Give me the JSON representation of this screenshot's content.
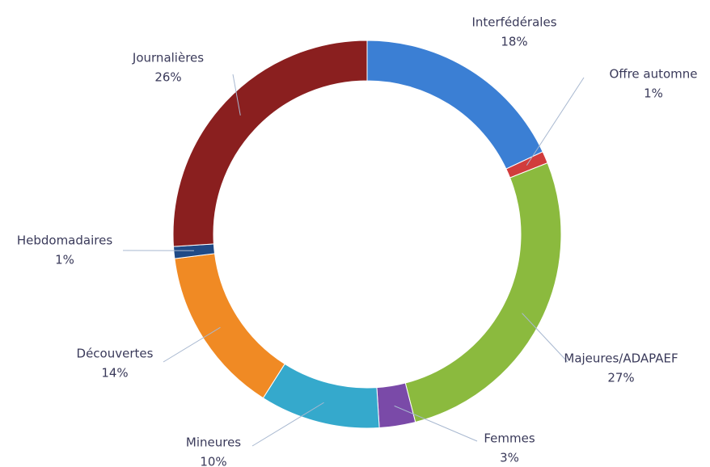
{
  "chart_data": {
    "type": "donut",
    "categories": [
      "Interfédérales",
      "Offre automne",
      "Majeures/ADAPAEF",
      "Femmes",
      "Mineures",
      "Découvertes",
      "Hebdomadaires",
      "Journalières"
    ],
    "values": [
      18,
      1,
      27,
      3,
      10,
      14,
      1,
      26
    ],
    "value_labels": [
      "18%",
      "1%",
      "27%",
      "3%",
      "10%",
      "14%",
      "1%",
      "26%"
    ],
    "colors": [
      "#3b7fd4",
      "#d13c3c",
      "#8bba3e",
      "#7a4aa8",
      "#35a9cc",
      "#f08a24",
      "#1f4a86",
      "#8a1f1f"
    ]
  }
}
